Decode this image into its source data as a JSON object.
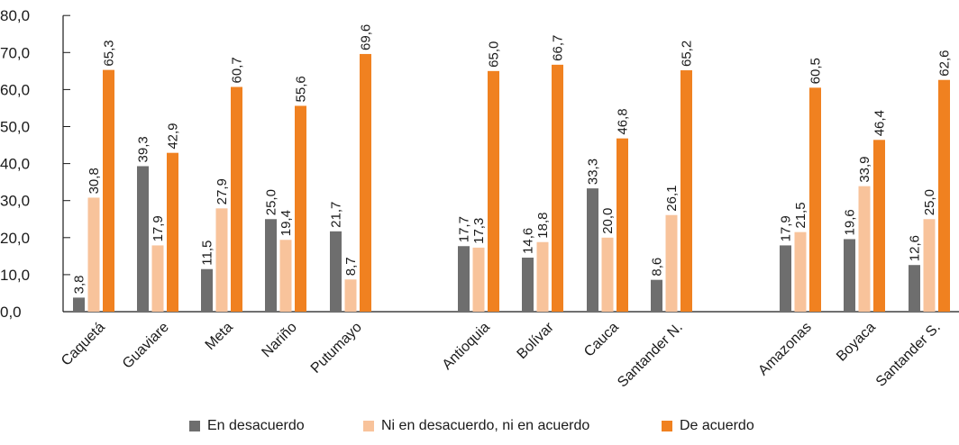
{
  "chart_data": {
    "type": "bar",
    "ylim": [
      0,
      80
    ],
    "yticks": [
      "0,0",
      "10,0",
      "20,0",
      "30,0",
      "40,0",
      "50,0",
      "60,0",
      "70,0",
      "80,0"
    ],
    "grid": false,
    "legend_position": "bottom",
    "groups": [
      [
        "Caquetá",
        "Guaviare",
        "Meta",
        "Nariño",
        "Putumayo"
      ],
      [
        "Antioquia",
        "Bolívar",
        "Cauca",
        "Santander N."
      ],
      [
        "Amazonas",
        "Boyaca",
        "Santander S."
      ]
    ],
    "categories": [
      "Caquetá",
      "Guaviare",
      "Meta",
      "Nariño",
      "Putumayo",
      "Antioquia",
      "Bolívar",
      "Cauca",
      "Santander N.",
      "Amazonas",
      "Boyaca",
      "Santander S."
    ],
    "series": [
      {
        "name": "En desacuerdo",
        "color": "#6e6e6e",
        "values": [
          3.8,
          39.3,
          11.5,
          25.0,
          21.7,
          17.7,
          14.6,
          33.3,
          8.6,
          17.9,
          19.6,
          12.6
        ],
        "labels": [
          "3,8",
          "39,3",
          "11,5",
          "25,0",
          "21,7",
          "17,7",
          "14,6",
          "33,3",
          "8,6",
          "17,9",
          "19,6",
          "12,6"
        ]
      },
      {
        "name": "Ni en desacuerdo, ni en acuerdo",
        "color": "#f8c39b",
        "values": [
          30.8,
          17.9,
          27.9,
          19.4,
          8.7,
          17.3,
          18.8,
          20.0,
          26.1,
          21.5,
          33.9,
          25.0
        ],
        "labels": [
          "30,8",
          "17,9",
          "27,9",
          "19,4",
          "8,7",
          "17,3",
          "18,8",
          "20,0",
          "26,1",
          "21,5",
          "33,9",
          "25,0"
        ]
      },
      {
        "name": "De acuerdo",
        "color": "#f08120",
        "values": [
          65.3,
          42.9,
          60.7,
          55.6,
          69.6,
          65.0,
          66.7,
          46.8,
          65.2,
          60.5,
          46.4,
          62.6
        ],
        "labels": [
          "65,3",
          "42,9",
          "60,7",
          "55,6",
          "69,6",
          "65,0",
          "66,7",
          "46,8",
          "65,2",
          "60,5",
          "46,4",
          "62,6"
        ]
      }
    ]
  }
}
